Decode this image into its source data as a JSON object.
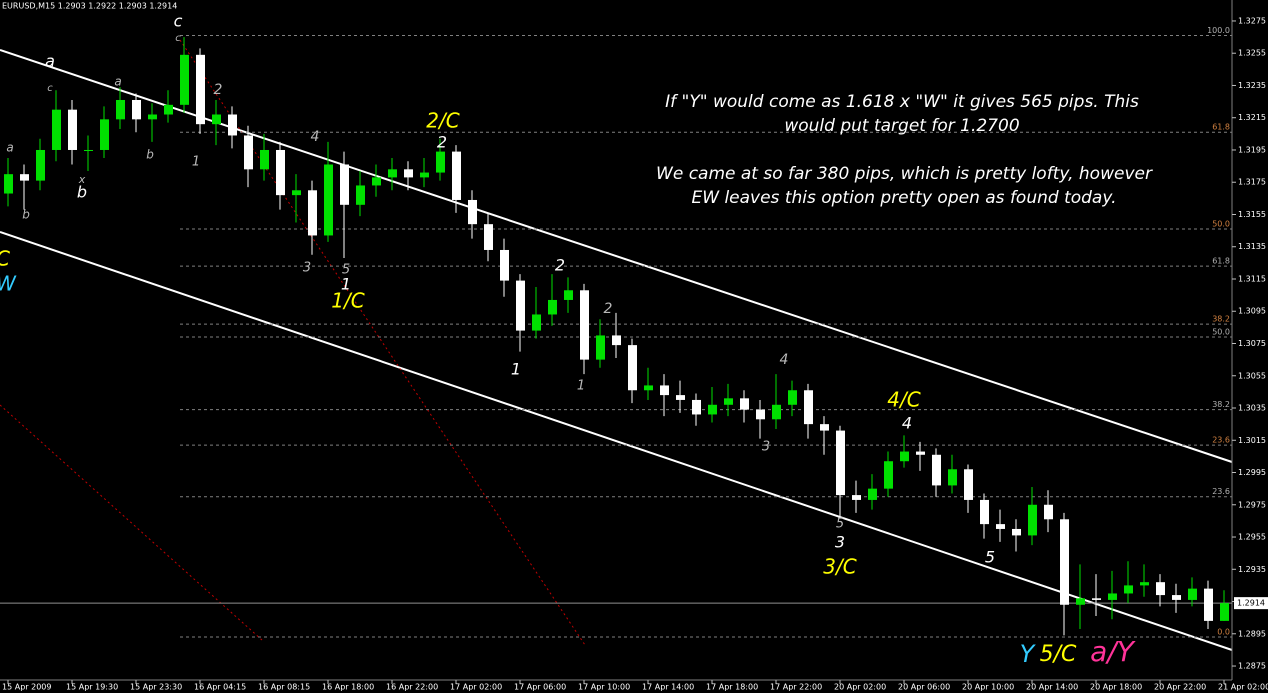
{
  "chart_data": {
    "type": "candlestick",
    "title": "EURUSD,M15  1.2903 1.2922 1.2903 1.2914",
    "categories": [
      "15 Apr 2009",
      null,
      null,
      null,
      "15 Apr 19:30",
      null,
      null,
      null,
      "15 Apr 23:30",
      null,
      null,
      null,
      "16 Apr 04:15",
      null,
      null,
      null,
      "16 Apr 08:15",
      null,
      null,
      null,
      "16 Apr 18:00",
      null,
      null,
      null,
      "16 Apr 22:00",
      null,
      null,
      null,
      "17 Apr 02:00",
      null,
      null,
      null,
      "17 Apr 06:00",
      null,
      null,
      null,
      "17 Apr 10:00",
      null,
      null,
      null,
      "17 Apr 14:00",
      null,
      null,
      null,
      "17 Apr 18:00",
      null,
      null,
      null,
      "17 Apr 22:00",
      null,
      null,
      null,
      "20 Apr 02:00",
      null,
      null,
      null,
      "20 Apr 06:00",
      null,
      null,
      null,
      "20 Apr 10:00",
      null,
      null,
      null,
      "20 Apr 14:00",
      null,
      null,
      null,
      "20 Apr 18:00",
      null,
      null,
      null,
      "20 Apr 22:00",
      null,
      null,
      null,
      "21 Apr 02:00"
    ],
    "open": [
      1.3168,
      1.318,
      1.3176,
      1.3195,
      1.322,
      1.3195,
      1.3195,
      1.3214,
      1.3226,
      1.3214,
      1.3217,
      1.3223,
      1.3254,
      1.3211,
      1.3217,
      1.3204,
      1.3183,
      1.3195,
      1.3167,
      1.317,
      1.3142,
      1.3186,
      1.3161,
      1.3173,
      1.3178,
      1.3183,
      1.3178,
      1.3181,
      1.3194,
      1.3164,
      1.3149,
      1.3133,
      1.3114,
      1.3083,
      1.3093,
      1.3102,
      1.3108,
      1.3065,
      1.308,
      1.3074,
      1.3046,
      1.3049,
      1.3043,
      1.304,
      1.3031,
      1.3037,
      1.3041,
      1.3034,
      1.3028,
      1.3037,
      1.3046,
      1.3025,
      1.3021,
      1.2981,
      1.2978,
      1.2985,
      1.3002,
      1.3008,
      1.3006,
      1.2987,
      1.2997,
      1.2978,
      1.2963,
      1.296,
      1.2956,
      1.2975,
      1.2966,
      1.2913,
      1.2917,
      1.2916,
      1.292,
      1.2925,
      1.2927,
      1.2919,
      1.2916,
      1.2923,
      1.2903
    ],
    "high": [
      1.319,
      1.3186,
      1.3202,
      1.3232,
      1.3226,
      1.3204,
      1.3222,
      1.3234,
      1.323,
      1.3224,
      1.3232,
      1.3265,
      1.3258,
      1.3226,
      1.3222,
      1.321,
      1.3205,
      1.32,
      1.318,
      1.3176,
      1.32,
      1.3194,
      1.3182,
      1.3186,
      1.319,
      1.3188,
      1.319,
      1.3202,
      1.3198,
      1.317,
      1.3156,
      1.314,
      1.3118,
      1.311,
      1.3118,
      1.3116,
      1.3112,
      1.309,
      1.3094,
      1.3078,
      1.306,
      1.3056,
      1.3052,
      1.3044,
      1.3048,
      1.305,
      1.3046,
      1.304,
      1.3056,
      1.3052,
      1.305,
      1.303,
      1.3024,
      1.299,
      1.2994,
      1.3008,
      1.3018,
      1.3014,
      1.301,
      1.3006,
      1.3,
      1.2982,
      1.2972,
      1.2966,
      1.2986,
      1.2984,
      1.297,
      1.2938,
      1.2932,
      1.2934,
      1.294,
      1.2938,
      1.2932,
      1.2926,
      1.293,
      1.2928,
      1.2922
    ],
    "low": [
      1.316,
      1.3158,
      1.317,
      1.3188,
      1.3186,
      1.3182,
      1.319,
      1.3208,
      1.3206,
      1.32,
      1.3212,
      1.3218,
      1.3205,
      1.3198,
      1.3196,
      1.3172,
      1.3176,
      1.3158,
      1.315,
      1.313,
      1.3138,
      1.3128,
      1.3154,
      1.3166,
      1.317,
      1.317,
      1.3172,
      1.3176,
      1.3156,
      1.314,
      1.3126,
      1.3104,
      1.307,
      1.3078,
      1.3086,
      1.3094,
      1.3056,
      1.306,
      1.3066,
      1.3038,
      1.304,
      1.303,
      1.3032,
      1.3024,
      1.3026,
      1.303,
      1.3026,
      1.3016,
      1.3022,
      1.303,
      1.3016,
      1.3006,
      1.2968,
      1.297,
      1.2972,
      1.298,
      1.2998,
      1.2996,
      1.298,
      1.2982,
      1.297,
      1.2954,
      1.2952,
      1.2946,
      1.295,
      1.2958,
      1.2894,
      1.2898,
      1.2906,
      1.2904,
      1.2914,
      1.2918,
      1.2912,
      1.2908,
      1.2912,
      1.2898,
      1.2903
    ],
    "close": [
      1.318,
      1.3176,
      1.3195,
      1.322,
      1.3195,
      1.3195,
      1.3214,
      1.3226,
      1.3214,
      1.3217,
      1.3223,
      1.3254,
      1.3211,
      1.3217,
      1.3204,
      1.3183,
      1.3195,
      1.3167,
      1.317,
      1.3142,
      1.3186,
      1.3161,
      1.3173,
      1.3178,
      1.3183,
      1.3178,
      1.3181,
      1.3194,
      1.3164,
      1.3149,
      1.3133,
      1.3114,
      1.3083,
      1.3093,
      1.3102,
      1.3108,
      1.3065,
      1.308,
      1.3074,
      1.3046,
      1.3049,
      1.3043,
      1.304,
      1.3031,
      1.3037,
      1.3041,
      1.3034,
      1.3028,
      1.3037,
      1.3046,
      1.3025,
      1.3021,
      1.2981,
      1.2978,
      1.2985,
      1.3002,
      1.3008,
      1.3006,
      1.2987,
      1.2997,
      1.2978,
      1.2963,
      1.296,
      1.2956,
      1.2975,
      1.2966,
      1.2913,
      1.2917,
      1.2916,
      1.292,
      1.2925,
      1.2927,
      1.2919,
      1.2916,
      1.2923,
      1.2903,
      1.2914
    ],
    "up_color": "#00e000",
    "down_color": "#ffffff",
    "ylim": [
      1.2862,
      1.3288
    ],
    "yticks": [
      1.3275,
      1.3255,
      1.3235,
      1.3215,
      1.3195,
      1.3175,
      1.3155,
      1.3135,
      1.3115,
      1.3095,
      1.3075,
      1.3055,
      1.3035,
      1.3015,
      1.2995,
      1.2975,
      1.2955,
      1.2935,
      1.2915,
      1.2895,
      1.2875
    ],
    "last_price": 1.2914,
    "fib_levels": [
      {
        "value": 1.3266,
        "label": "100.0",
        "color": "#b0b0b0"
      },
      {
        "value": 1.3206,
        "label": "61.8",
        "color": "#d08040"
      },
      {
        "value": 1.3146,
        "label": "50.0",
        "color": "#d08040"
      },
      {
        "value": 1.3123,
        "label": "61.8",
        "color": "#b0b0b0"
      },
      {
        "value": 1.3087,
        "label": "38.2",
        "color": "#d08040"
      },
      {
        "value": 1.3079,
        "label": "50.0",
        "color": "#b0b0b0"
      },
      {
        "value": 1.3034,
        "label": "38.2",
        "color": "#b0b0b0"
      },
      {
        "value": 1.3012,
        "label": "23.6",
        "color": "#d08040"
      },
      {
        "value": 1.298,
        "label": "23.6",
        "color": "#b0b0b0"
      },
      {
        "value": 1.2893,
        "label": "0.0",
        "color": "#d08040"
      }
    ],
    "annotations": [
      "c",
      "c",
      "a",
      "c",
      "a",
      "a",
      "b",
      "x",
      "b",
      "b",
      "2",
      "1",
      "4",
      "3",
      "5",
      "1",
      "1/C",
      "2/C",
      "2",
      "2",
      "1",
      "2",
      "1",
      "4",
      "3",
      "4/C",
      "4",
      "5",
      "3",
      "3/C",
      "5",
      "Y",
      "5/C",
      "a/Y",
      "C",
      "W",
      "If \"Y\" would come as 1.618 x \"W\" it gives 565 pips. This",
      "would put target for 1.2700",
      "We came at so far 380 pips, which is pretty lofty, however",
      "EW leaves this option pretty open as found today."
    ]
  }
}
